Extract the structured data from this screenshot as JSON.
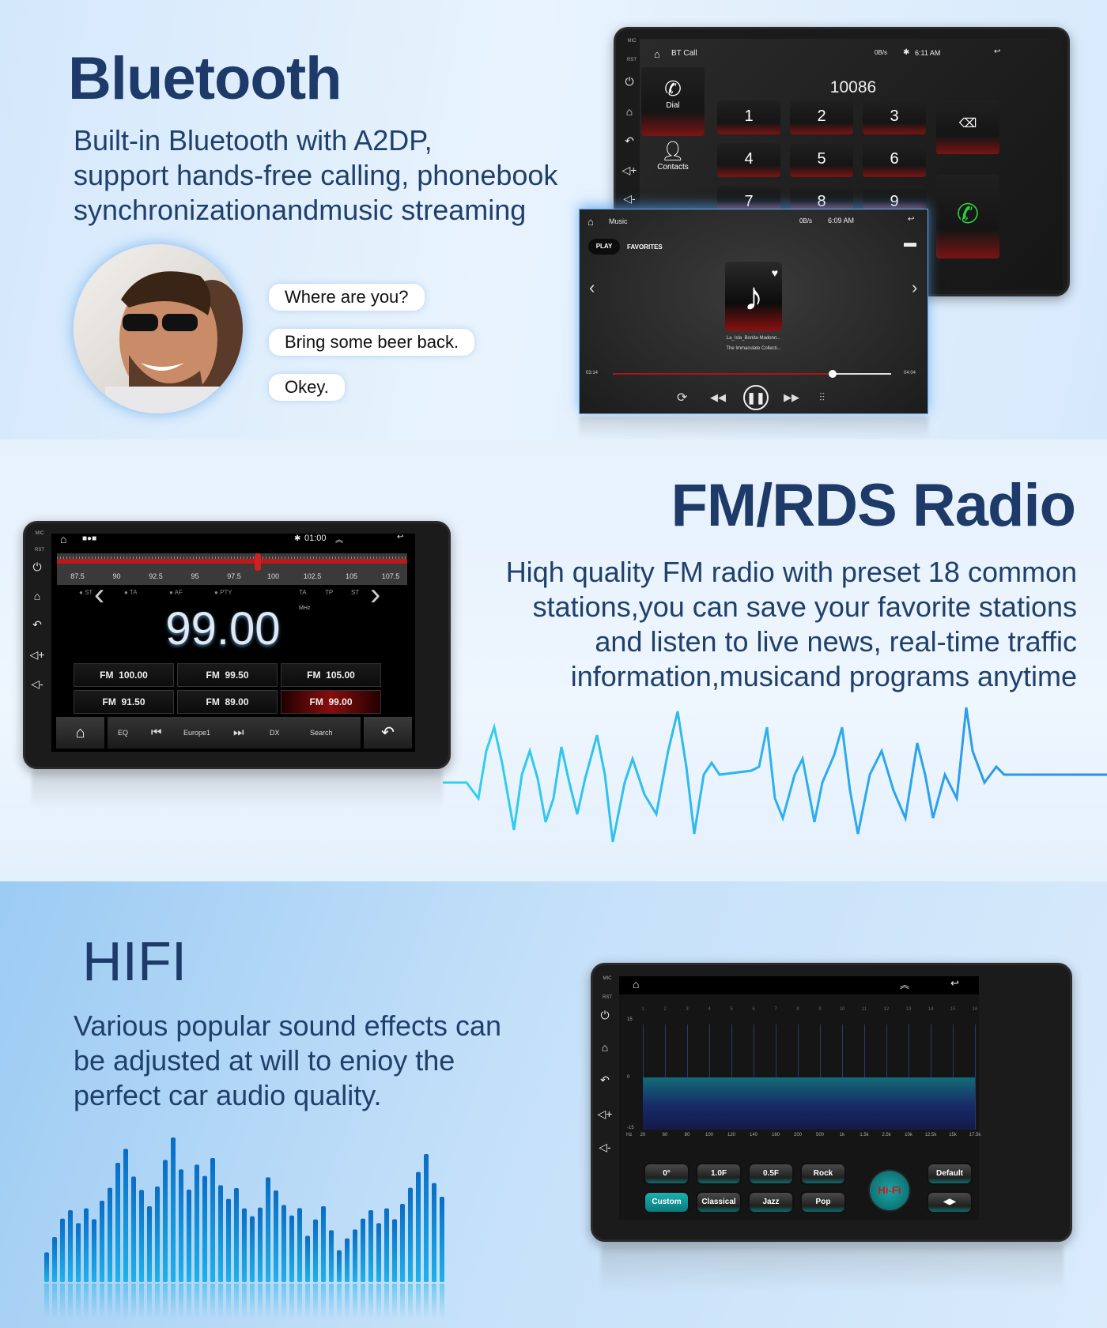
{
  "bluetooth": {
    "title": "Bluetooth",
    "description": [
      "Built-in Bluetooth with A2DP,",
      "support hands-free calling, phonebook",
      "synchronizationandmusic streaming"
    ],
    "chat": [
      "Where are you?",
      "Bring some beer back.",
      "Okey."
    ],
    "call_screen": {
      "app": "BT Call",
      "status": "0B/s",
      "time": "6:11 AM",
      "number": "10086",
      "dial_label": "Dial",
      "contacts_label": "Contacts",
      "keys": [
        "1",
        "2",
        "3",
        "4",
        "5",
        "6",
        "7",
        "8",
        "9"
      ],
      "side_labels": [
        "MIC",
        "RST"
      ]
    },
    "music_screen": {
      "app": "Music",
      "status": "0B/s",
      "time": "6:09 AM",
      "tabs": [
        "PLAY",
        "FAVORITES"
      ],
      "active_tab": "PLAY",
      "song": "La_Isla_Bonita-Madonn...",
      "album": "The Immaculate Collecti...",
      "elapsed": "03:14",
      "total": "04:04",
      "progress": 0.79
    }
  },
  "radio": {
    "title": "FM/RDS Radio",
    "description": [
      "Hiqh quality FM radio with preset 18 common",
      "stations,you can save your favorite stations",
      "and listen to live news, real-time traffic",
      "information,musicand programs anytime"
    ],
    "screen": {
      "time": "01:00",
      "scale": [
        "87.5",
        "90",
        "92.5",
        "95",
        "97.5",
        "100",
        "102.5",
        "105",
        "107.5"
      ],
      "indicators_left": [
        "ST",
        "TA",
        "AF",
        "PTY"
      ],
      "indicators_right": [
        "TA",
        "TP",
        "ST"
      ],
      "frequency": "99.00",
      "unit": "MHz",
      "presets": [
        {
          "band": "FM",
          "freq": "100.00"
        },
        {
          "band": "FM",
          "freq": "99.50"
        },
        {
          "band": "FM",
          "freq": "105.00"
        },
        {
          "band": "FM",
          "freq": "91.50"
        },
        {
          "band": "FM",
          "freq": "89.00"
        },
        {
          "band": "FM",
          "freq": "99.00",
          "active": true
        }
      ],
      "controls": {
        "eq": "EQ",
        "station": "Europe1",
        "dx": "DX",
        "search": "Search"
      },
      "tuner_value": 99.0,
      "side_labels": [
        "MIC",
        "RST"
      ]
    }
  },
  "hifi": {
    "title": "HIFI",
    "description": [
      "Various popular sound effects can",
      "be adjusted at will to enioy the",
      "perfect car audio quality."
    ],
    "eq_screen": {
      "bands": [
        "1",
        "2",
        "3",
        "4",
        "5",
        "6",
        "7",
        "8",
        "9",
        "10",
        "11",
        "12",
        "13",
        "14",
        "15",
        "16"
      ],
      "y_labels": [
        "15",
        "0",
        "-15"
      ],
      "unit": "Hz",
      "freqs": [
        "20",
        "60",
        "80",
        "100",
        "120",
        "140",
        "160",
        "200",
        "500",
        "1k",
        "1.5k",
        "2.5k",
        "10k",
        "12.5k",
        "15k",
        "17.5k"
      ],
      "band_levels": [
        0,
        0,
        0,
        0,
        0,
        0,
        0,
        0,
        0,
        0,
        0,
        0,
        0,
        0,
        0,
        0
      ],
      "buttons_row1": [
        "0°",
        "1.0F",
        "0.5F",
        "Rock"
      ],
      "buttons_row2": [
        "Custom",
        "Classical",
        "Jazz",
        "Pop"
      ],
      "active": "Custom",
      "logo": "Hi-Fi",
      "default_label": "Default",
      "side_labels": [
        "MIC",
        "RST"
      ]
    },
    "colors": {
      "accent": "#0f8c8c",
      "bars": "#0a74c8"
    }
  }
}
